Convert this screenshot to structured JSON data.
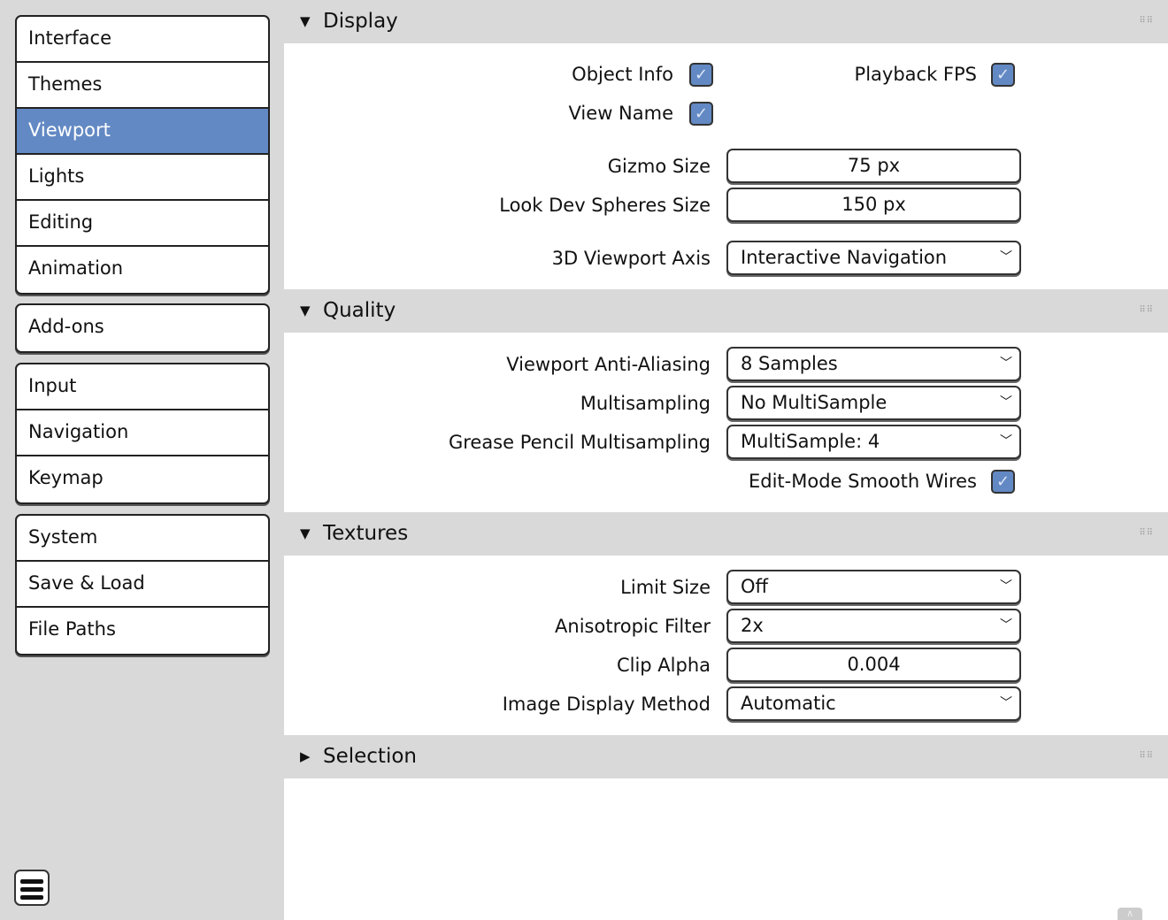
{
  "sidebar": {
    "groups": [
      [
        {
          "label": "Interface"
        },
        {
          "label": "Themes"
        },
        {
          "label": "Viewport",
          "active": true
        },
        {
          "label": "Lights"
        },
        {
          "label": "Editing"
        },
        {
          "label": "Animation"
        }
      ],
      [
        {
          "label": "Add-ons"
        }
      ],
      [
        {
          "label": "Input"
        },
        {
          "label": "Navigation"
        },
        {
          "label": "Keymap"
        }
      ],
      [
        {
          "label": "System"
        },
        {
          "label": "Save & Load"
        },
        {
          "label": "File Paths"
        }
      ]
    ],
    "accent": "#6389c4"
  },
  "panels": {
    "display": {
      "title": "Display",
      "object_info": "Object Info",
      "playback_fps": "Playback FPS",
      "view_name": "View Name",
      "gizmo_size_label": "Gizmo Size",
      "gizmo_size": "75 px",
      "look_dev_label": "Look Dev Spheres Size",
      "look_dev": "150 px",
      "axis_label": "3D Viewport Axis",
      "axis": "Interactive Navigation"
    },
    "quality": {
      "title": "Quality",
      "aa_label": "Viewport Anti-Aliasing",
      "aa": "8 Samples",
      "ms_label": "Multisampling",
      "ms": "No MultiSample",
      "gp_label": "Grease Pencil Multisampling",
      "gp": "MultiSample: 4",
      "smooth_wires": "Edit-Mode Smooth Wires"
    },
    "textures": {
      "title": "Textures",
      "limit_label": "Limit Size",
      "limit": "Off",
      "aniso_label": "Anisotropic Filter",
      "aniso": "2x",
      "clip_label": "Clip Alpha",
      "clip": "0.004",
      "idm_label": "Image Display Method",
      "idm": "Automatic"
    },
    "selection": {
      "title": "Selection"
    }
  },
  "icons": {
    "expanded": "▼",
    "collapsed": "▶",
    "check": "✓",
    "chevron": "⌄"
  }
}
